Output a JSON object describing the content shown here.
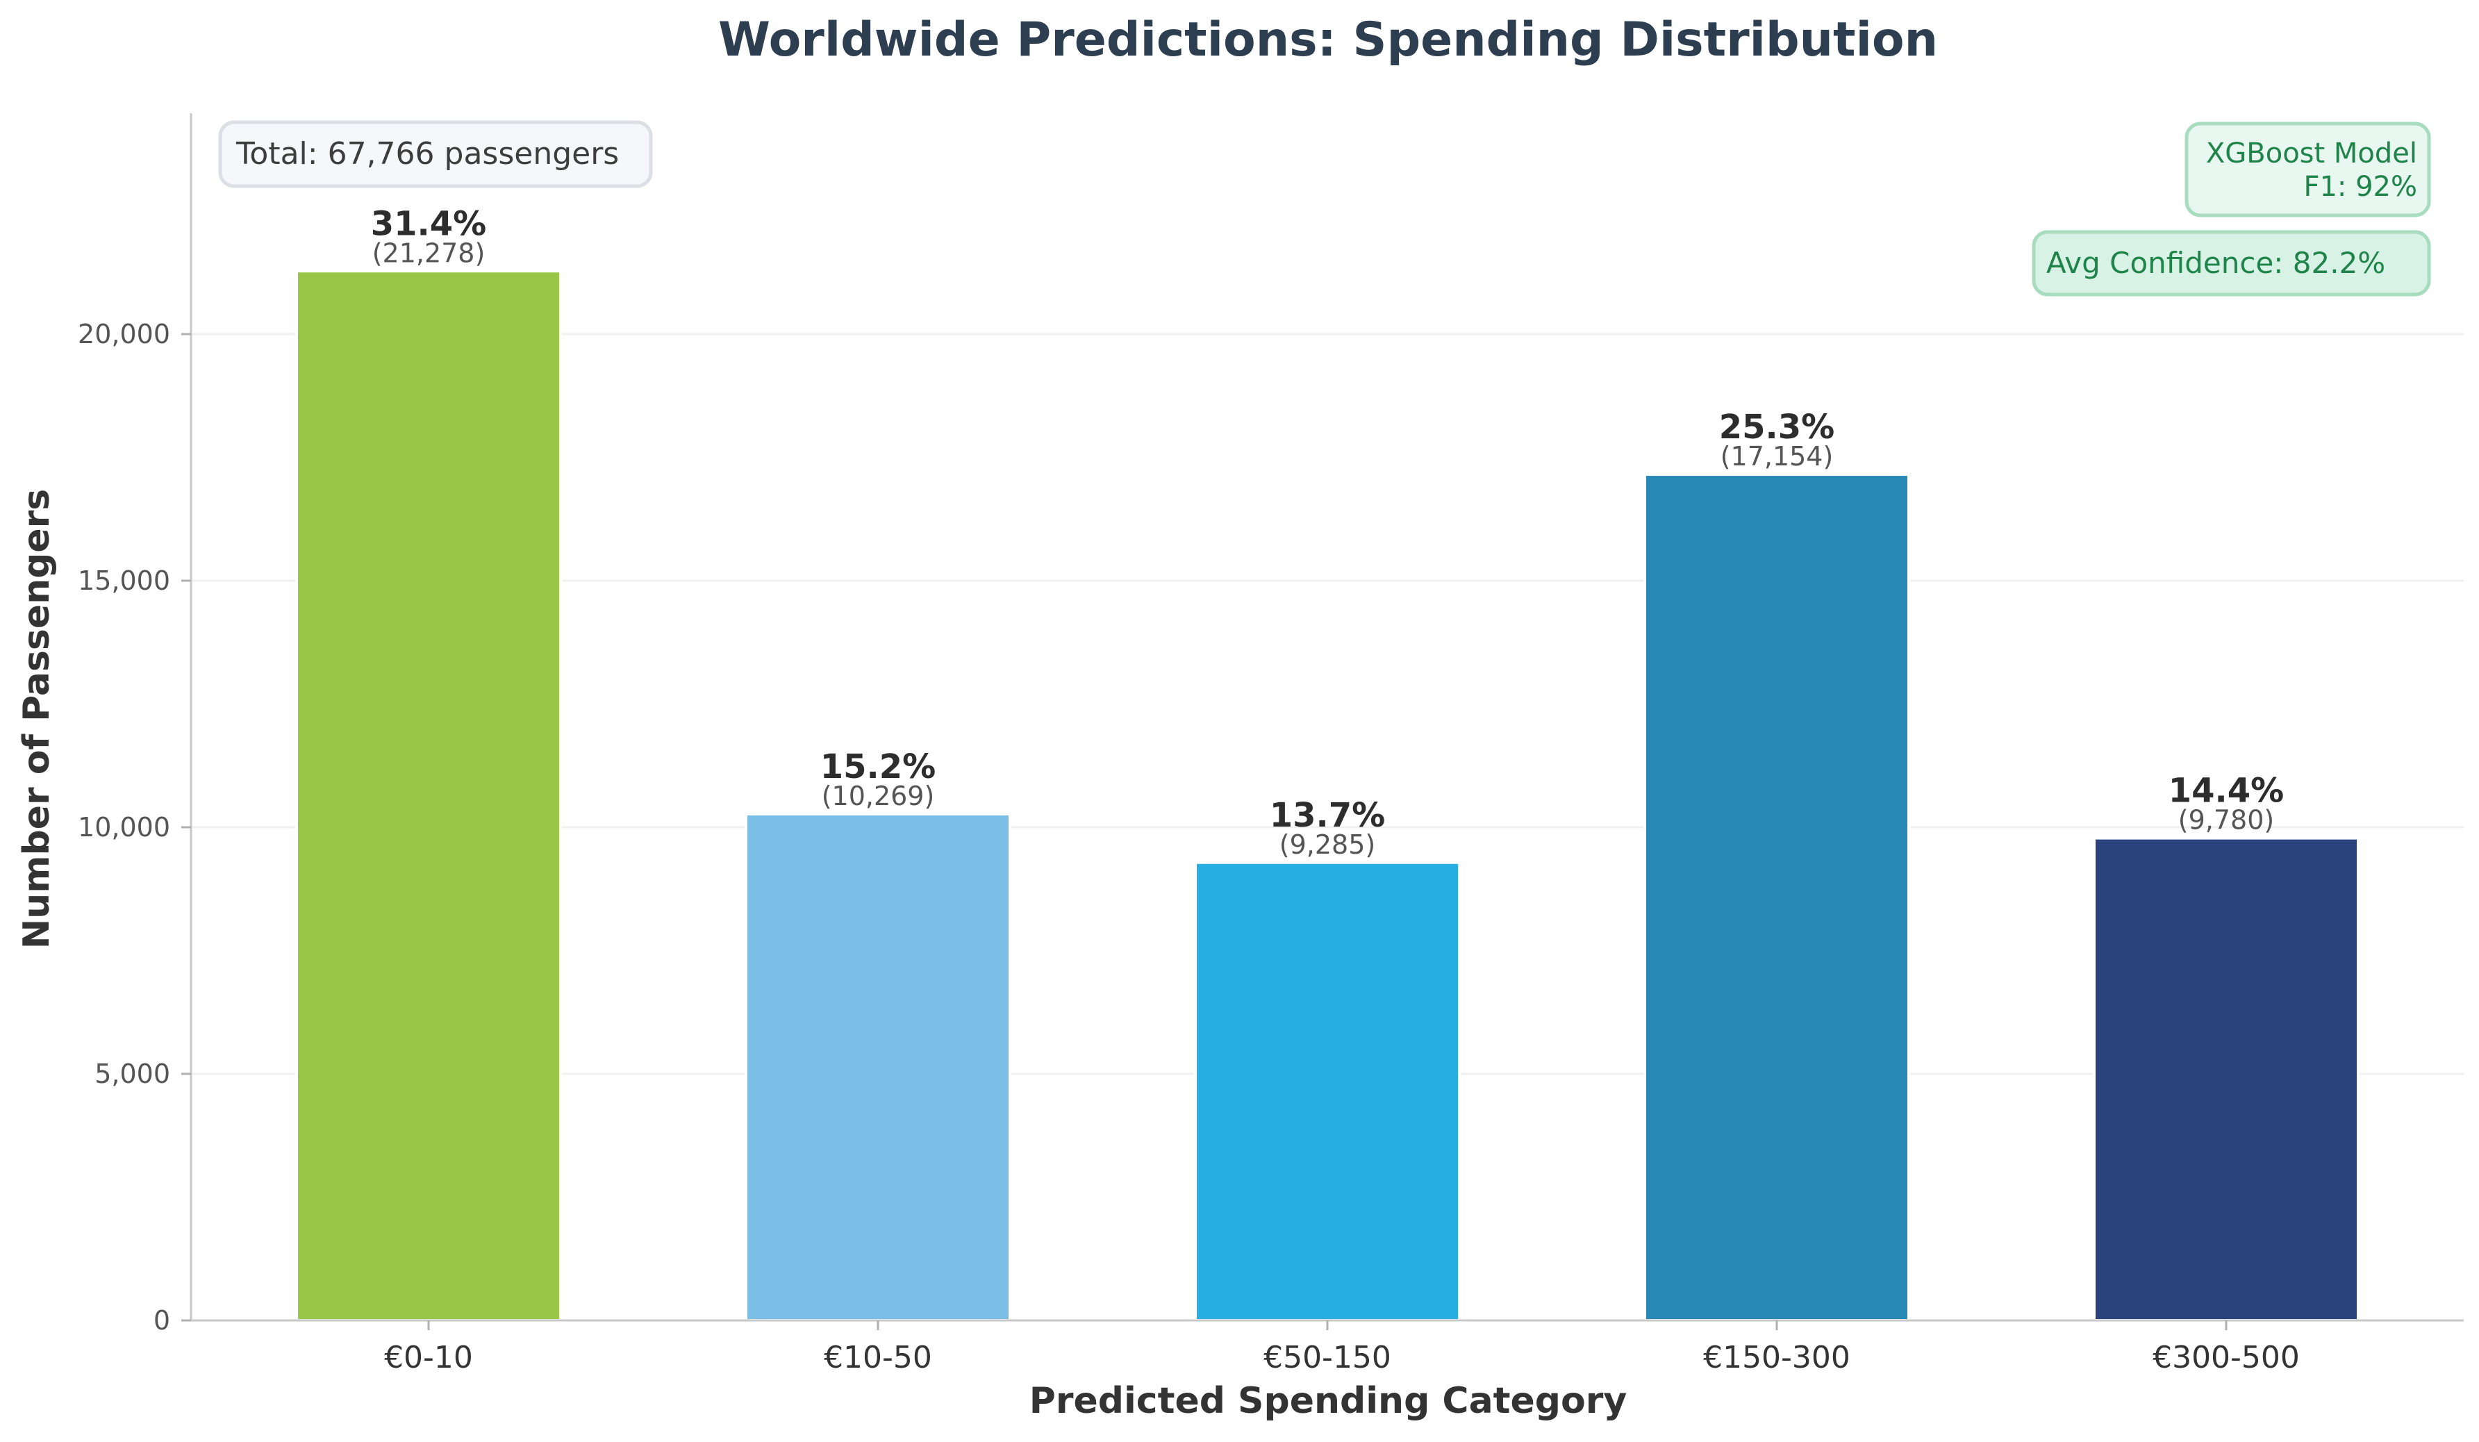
{
  "chart_data": {
    "type": "bar",
    "title": "Worldwide Predictions: Spending Distribution",
    "xlabel": "Predicted Spending Category",
    "ylabel": "Number of Passengers",
    "categories": [
      "€0-10",
      "€10-50",
      "€50-150",
      "€150-300",
      "€300-500"
    ],
    "values": [
      21278,
      10269,
      9285,
      17154,
      9780
    ],
    "percent_labels": [
      "31.4%",
      "15.2%",
      "13.7%",
      "25.3%",
      "14.4%"
    ],
    "count_labels": [
      "(21,278)",
      "(10,269)",
      "(9,285)",
      "(17,154)",
      "(9,780)"
    ],
    "colors": [
      "#99c647",
      "#7bbfe6",
      "#28aee3",
      "#2889b5",
      "#2a437d"
    ],
    "ylim": [
      0,
      24500
    ],
    "yticks": [
      0,
      5000,
      10000,
      15000,
      20000
    ],
    "ytick_labels": [
      "0",
      "5,000",
      "10,000",
      "15,000",
      "20,000"
    ],
    "grid": true,
    "annotations": {
      "total": "Total: 67,766 passengers",
      "model_line1": "XGBoost Model",
      "model_line2": "F1: 92%",
      "confidence": "Avg Confidence: 82.2%"
    }
  }
}
